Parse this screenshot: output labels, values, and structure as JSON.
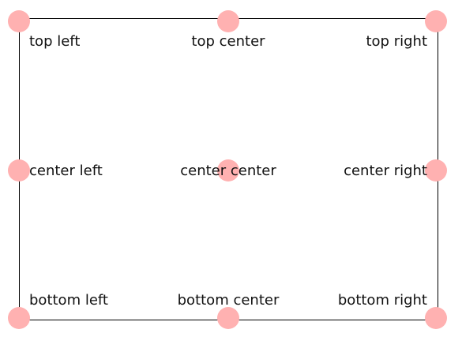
{
  "colors": {
    "marker": "#ffb1b1",
    "frame_border": "#000000",
    "text": "#111111",
    "background": "#ffffff"
  },
  "labels": {
    "top_left": "top left",
    "top_center": "top center",
    "top_right": "top right",
    "center_left": "center left",
    "center_center": "center center",
    "center_right": "center right",
    "bottom_left": "bottom left",
    "bottom_center": "bottom center",
    "bottom_right": "bottom right"
  }
}
